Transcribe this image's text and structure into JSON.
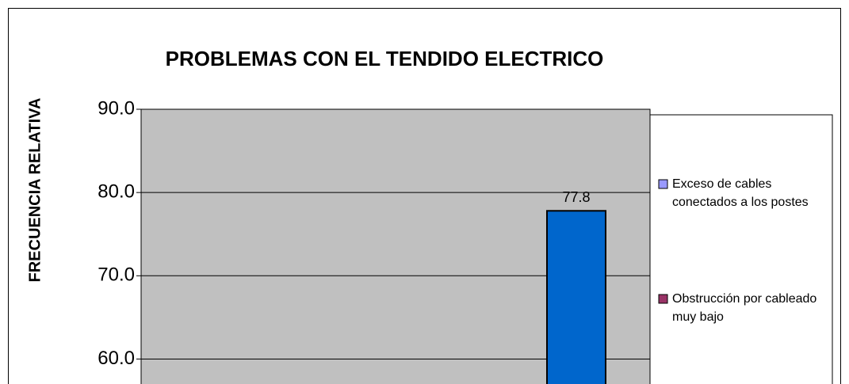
{
  "chart_data": {
    "type": "bar",
    "title": "PROBLEMAS CON EL TENDIDO ELECTRICO",
    "ylabel": "FRECUENCIA RELATIVA",
    "values": [
      77.8
    ],
    "color": "#0066cc",
    "ylim": [
      57,
      90
    ],
    "yticks": [
      {
        "value": 60,
        "label": "60.0"
      },
      {
        "value": 70,
        "label": "70.0"
      },
      {
        "value": 80,
        "label": "80.0"
      },
      {
        "value": 90,
        "label": "90.0"
      }
    ],
    "grid": true,
    "plot_background": "#c0c0c0",
    "legend": [
      {
        "name": "Exceso de cables conectados a los postes",
        "color": "#9999ff"
      },
      {
        "name": "Obstrucción por cableado muy bajo",
        "color": "#993366"
      }
    ],
    "legend_position": "right"
  }
}
